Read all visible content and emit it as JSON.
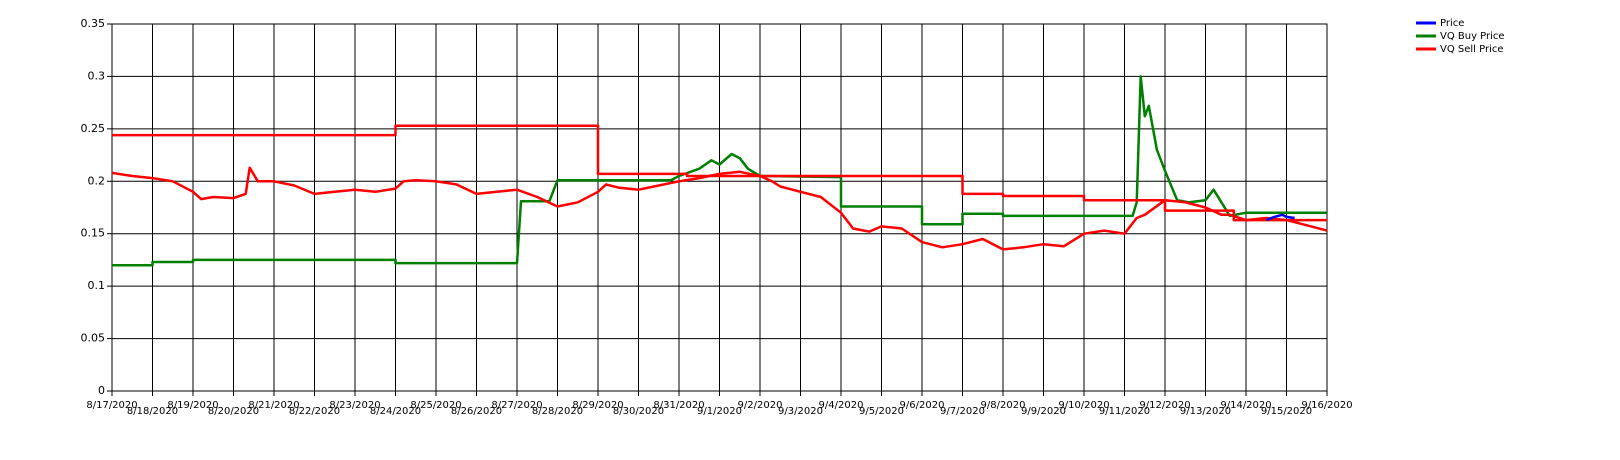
{
  "chart_data": {
    "type": "line",
    "xlim": [
      0,
      30
    ],
    "ylim": [
      0,
      0.35
    ],
    "grid": true,
    "legend": "top-right",
    "yticks": [
      0,
      0.05,
      0.1,
      0.15,
      0.2,
      0.25,
      0.3,
      0.35
    ],
    "xticks": [
      {
        "value": 0,
        "label": "8/17/2020"
      },
      {
        "value": 1,
        "label": "8/18/2020"
      },
      {
        "value": 2,
        "label": "8/19/2020"
      },
      {
        "value": 3,
        "label": "8/20/2020"
      },
      {
        "value": 4,
        "label": "8/21/2020"
      },
      {
        "value": 5,
        "label": "8/22/2020"
      },
      {
        "value": 6,
        "label": "8/23/2020"
      },
      {
        "value": 7,
        "label": "8/24/2020"
      },
      {
        "value": 8,
        "label": "8/25/2020"
      },
      {
        "value": 9,
        "label": "8/26/2020"
      },
      {
        "value": 10,
        "label": "8/27/2020"
      },
      {
        "value": 11,
        "label": "8/28/2020"
      },
      {
        "value": 12,
        "label": "8/29/2020"
      },
      {
        "value": 13,
        "label": "8/30/2020"
      },
      {
        "value": 14,
        "label": "8/31/2020"
      },
      {
        "value": 15,
        "label": "9/1/2020"
      },
      {
        "value": 16,
        "label": "9/2/2020"
      },
      {
        "value": 17,
        "label": "9/3/2020"
      },
      {
        "value": 18,
        "label": "9/4/2020"
      },
      {
        "value": 19,
        "label": "9/5/2020"
      },
      {
        "value": 20,
        "label": "9/6/2020"
      },
      {
        "value": 21,
        "label": "9/7/2020"
      },
      {
        "value": 22,
        "label": "9/8/2020"
      },
      {
        "value": 23,
        "label": "9/9/2020"
      },
      {
        "value": 24,
        "label": "9/10/2020"
      },
      {
        "value": 25,
        "label": "9/11/2020"
      },
      {
        "value": 26,
        "label": "9/12/2020"
      },
      {
        "value": 27,
        "label": "9/13/2020"
      },
      {
        "value": 28,
        "label": "9/14/2020"
      },
      {
        "value": 29,
        "label": "9/15/2020"
      },
      {
        "value": 30,
        "label": "9/16/2020"
      }
    ],
    "series": [
      {
        "name": "Price",
        "color": "#0000ff",
        "x": [
          28.5,
          28.7,
          28.9,
          29.0,
          29.2
        ],
        "values": [
          0.163,
          0.166,
          0.168,
          0.166,
          0.165
        ]
      },
      {
        "name": "VQ Buy Price",
        "color": "#008000",
        "x": [
          0,
          1,
          1,
          2,
          2,
          7,
          7,
          10,
          10.1,
          10.8,
          11,
          13.8,
          14,
          14.5,
          14.8,
          15,
          15.3,
          15.5,
          15.7,
          16,
          18,
          18,
          20,
          20,
          21,
          21,
          22,
          22,
          25.2,
          25.3,
          25.4,
          25.5,
          25.6,
          25.8,
          26,
          26.3,
          26.6,
          27,
          27.2,
          27.6,
          28,
          30
        ],
        "values": [
          0.12,
          0.12,
          0.123,
          0.123,
          0.125,
          0.125,
          0.122,
          0.122,
          0.181,
          0.181,
          0.201,
          0.201,
          0.205,
          0.212,
          0.22,
          0.216,
          0.226,
          0.222,
          0.212,
          0.205,
          0.204,
          0.176,
          0.176,
          0.159,
          0.159,
          0.169,
          0.169,
          0.167,
          0.167,
          0.18,
          0.3,
          0.262,
          0.272,
          0.23,
          0.21,
          0.182,
          0.18,
          0.182,
          0.192,
          0.167,
          0.17,
          0.17
        ]
      },
      {
        "name": "VQ Sell Price",
        "color": "#ff0000",
        "x": [
          0,
          7,
          7,
          12,
          12,
          14.2,
          14.2,
          21,
          21,
          22,
          22,
          24,
          24,
          26,
          26,
          27.7,
          27.7,
          30
        ],
        "values": [
          0.244,
          0.244,
          0.253,
          0.253,
          0.207,
          0.207,
          0.205,
          0.205,
          0.188,
          0.188,
          0.186,
          0.186,
          0.182,
          0.182,
          0.172,
          0.172,
          0.163,
          0.163
        ]
      },
      {
        "color": "#ff0000",
        "x": [
          0,
          0.5,
          1,
          1.5,
          2,
          2.2,
          2.5,
          3,
          3.3,
          3.4,
          3.6,
          4,
          4.5,
          5,
          5.5,
          6,
          6.5,
          7,
          7.2,
          7.5,
          8,
          8.5,
          9,
          9.5,
          10,
          10.5,
          11,
          11.5,
          12,
          12.2,
          12.5,
          13,
          13.5,
          14,
          14.5,
          15,
          15.5,
          16,
          16.3,
          16.5,
          17,
          17.5,
          18,
          18.3,
          18.7,
          19,
          19.5,
          20,
          20.5,
          21,
          21.5,
          22,
          22.5,
          23,
          23.5,
          24,
          24.5,
          25,
          25.3,
          25.5,
          26,
          26.5,
          27,
          27.4,
          27.6,
          28,
          28.5,
          29,
          29.5,
          30
        ],
        "values": [
          0.208,
          0.205,
          0.203,
          0.2,
          0.19,
          0.183,
          0.185,
          0.184,
          0.188,
          0.213,
          0.2,
          0.2,
          0.196,
          0.188,
          0.19,
          0.192,
          0.19,
          0.193,
          0.2,
          0.201,
          0.2,
          0.197,
          0.188,
          0.19,
          0.192,
          0.185,
          0.176,
          0.18,
          0.19,
          0.197,
          0.194,
          0.192,
          0.196,
          0.2,
          0.203,
          0.207,
          0.209,
          0.205,
          0.2,
          0.195,
          0.19,
          0.185,
          0.17,
          0.155,
          0.152,
          0.157,
          0.155,
          0.142,
          0.137,
          0.14,
          0.145,
          0.135,
          0.137,
          0.14,
          0.138,
          0.15,
          0.153,
          0.15,
          0.165,
          0.168,
          0.182,
          0.18,
          0.175,
          0.168,
          0.168,
          0.163,
          0.165,
          0.163,
          0.158,
          0.153
        ]
      }
    ]
  }
}
